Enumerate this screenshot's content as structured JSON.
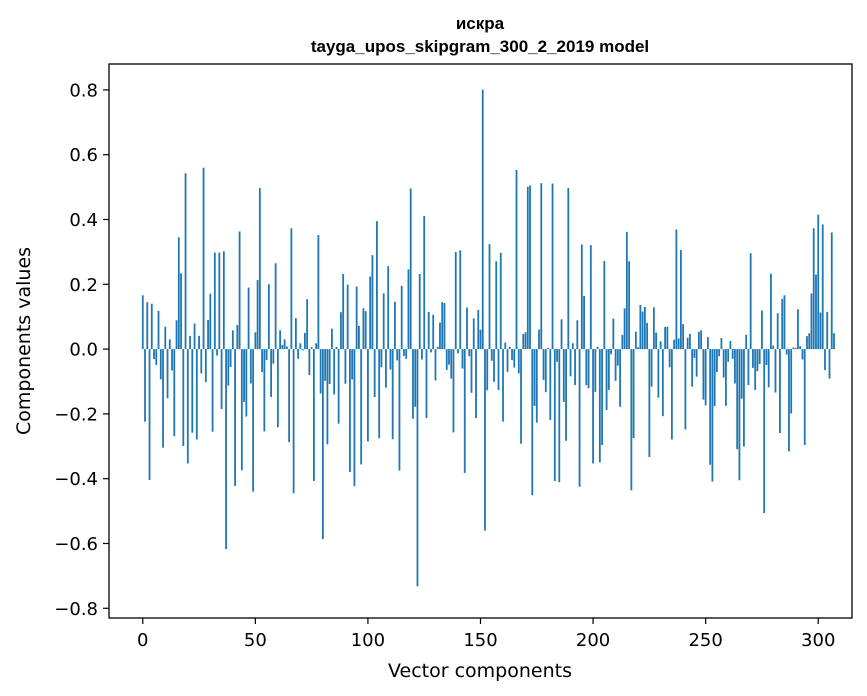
{
  "chart_data": {
    "type": "bar",
    "title_line1": "искра",
    "title_line2": "tayga_upos_skipgram_300_2_2019 model",
    "xlabel": "Vector components",
    "ylabel": "Components values",
    "xlim": [
      -15,
      315
    ],
    "ylim": [
      -0.83,
      0.88
    ],
    "xticks": [
      0,
      50,
      100,
      150,
      200,
      250,
      300
    ],
    "xtick_labels": [
      "0",
      "50",
      "100",
      "150",
      "200",
      "250",
      "300"
    ],
    "yticks": [
      -0.8,
      -0.6,
      -0.4,
      -0.2,
      0.0,
      0.2,
      0.4,
      0.6,
      0.8
    ],
    "ytick_labels": [
      "−0.8",
      "−0.6",
      "−0.4",
      "−0.2",
      "0.0",
      "0.2",
      "0.4",
      "0.6",
      "0.8"
    ],
    "bar_color": "#1f77b4",
    "values": [
      0.166,
      -0.224,
      0.145,
      -0.404,
      0.14,
      -0.031,
      -0.049,
      0.118,
      -0.093,
      -0.304,
      0.069,
      -0.152,
      0.03,
      -0.066,
      -0.269,
      0.089,
      0.345,
      0.234,
      -0.299,
      0.543,
      -0.353,
      0.041,
      -0.258,
      0.079,
      -0.279,
      0.041,
      -0.075,
      0.56,
      -0.102,
      0.09,
      0.171,
      -0.255,
      0.298,
      -0.02,
      0.298,
      -0.185,
      0.302,
      -0.617,
      -0.113,
      -0.055,
      0.058,
      -0.422,
      0.074,
      0.363,
      -0.374,
      -0.163,
      -0.208,
      0.19,
      -0.106,
      -0.44,
      0.052,
      0.213,
      0.497,
      -0.071,
      -0.254,
      -0.034,
      0.2,
      -0.148,
      -0.045,
      0.265,
      -0.241,
      0.058,
      0.013,
      0.03,
      0.008,
      -0.287,
      0.373,
      -0.445,
      0.095,
      -0.03,
      0.018,
      -0.004,
      0.05,
      0.154,
      -0.08,
      0.006,
      -0.407,
      0.018,
      0.352,
      -0.137,
      -0.586,
      -0.098,
      -0.294,
      -0.108,
      0.063,
      -0.14,
      0.007,
      -0.23,
      0.114,
      0.232,
      -0.107,
      0.199,
      -0.379,
      -0.094,
      -0.423,
      0.193,
      0.072,
      -0.356,
      0.126,
      0.117,
      -0.285,
      0.224,
      0.29,
      -0.148,
      0.395,
      -0.275,
      -0.056,
      0.172,
      -0.119,
      0.256,
      -0.063,
      -0.278,
      0.146,
      -0.035,
      -0.375,
      0.195,
      -0.021,
      -0.03,
      0.246,
      0.496,
      -0.215,
      -0.178,
      -0.732,
      0.232,
      -0.032,
      0.411,
      -0.213,
      0.115,
      -0.01,
      0.106,
      -0.097,
      0.007,
      0.082,
      0.145,
      0.142,
      -0.064,
      -0.048,
      -0.091,
      -0.257,
      0.3,
      -0.013,
      0.305,
      -0.06,
      -0.382,
      0.128,
      -0.022,
      -0.135,
      0.095,
      -0.213,
      0.121,
      0.06,
      0.801,
      -0.56,
      -0.127,
      0.324,
      -0.036,
      -0.101,
      0.271,
      -0.126,
      0.297,
      -0.224,
      0.02,
      -0.07,
      0.007,
      -0.034,
      -0.057,
      0.553,
      -0.075,
      -0.292,
      0.047,
      0.052,
      0.501,
      0.505,
      -0.451,
      -0.175,
      -0.227,
      0.06,
      0.512,
      -0.095,
      -0.133,
      0.004,
      -0.219,
      0.511,
      -0.407,
      -0.039,
      -0.411,
      0.092,
      -0.163,
      -0.283,
      0.497,
      -0.084,
      0.018,
      -0.111,
      0.089,
      -0.425,
      0.323,
      0.164,
      -0.111,
      -0.121,
      0.321,
      -0.353,
      -0.132,
      0.007,
      -0.35,
      -0.296,
      0.272,
      -0.188,
      -0.126,
      -0.016,
      0.094,
      -0.098,
      -0.051,
      -0.178,
      0.044,
      0.126,
      0.362,
      0.271,
      -0.436,
      -0.275,
      0.054,
      0.006,
      0.136,
      0.116,
      0.13,
      0.081,
      -0.333,
      -0.116,
      0.129,
      0.051,
      -0.15,
      0.024,
      -0.207,
      0.068,
      0.069,
      -0.056,
      -0.279,
      0.029,
      0.369,
      0.033,
      0.306,
      0.077,
      -0.248,
      0.035,
      0.047,
      -0.116,
      -0.027,
      -0.085,
      0.053,
      0.058,
      -0.156,
      -0.174,
      0.037,
      -0.357,
      -0.409,
      -0.176,
      -0.071,
      -0.022,
      0.034,
      -0.088,
      -0.175,
      -0.039,
      0.025,
      -0.03,
      -0.106,
      -0.309,
      -0.405,
      -0.153,
      -0.301,
      0.044,
      -0.111,
      0.296,
      -0.058,
      -0.126,
      -0.068,
      -0.046,
      0.119,
      -0.506,
      -0.049,
      -0.118,
      0.233,
      0.011,
      -0.134,
      0.111,
      -0.259,
      0.155,
      0.166,
      -0.017,
      -0.316,
      -0.199,
      0.005,
      0.004,
      0.123,
      0.009,
      -0.032,
      -0.296,
      0.04,
      0.049,
      0.172,
      0.373,
      0.23,
      0.415,
      0.113,
      0.385,
      -0.065,
      0.115,
      -0.091,
      0.36,
      0.049
    ]
  }
}
